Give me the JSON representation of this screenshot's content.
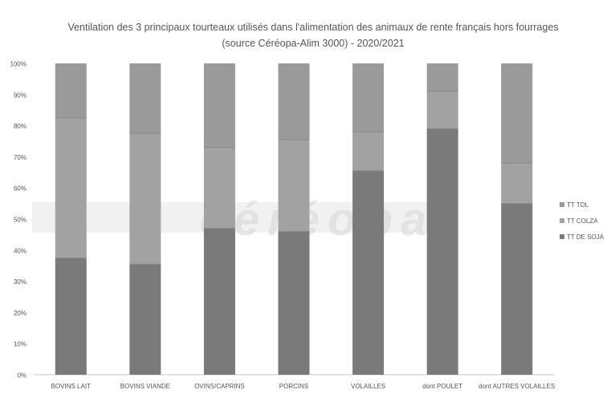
{
  "chart_data": {
    "type": "bar",
    "stacked": true,
    "normalized": true,
    "title_line1": "Ventilation des 3 principaux tourteaux utilisés dans l'alimentation des animaux de rente français hors fourrages",
    "title_line2": "(source Céréopa-Alim 3000) - 2020/2021",
    "categories": [
      "BOVINS LAIT",
      "BOVINS VIANDE",
      "OVINS/CAPRINS",
      "PORCINS",
      "VOLAILLES",
      "dont POULET",
      "dont AUTRES VOLAILLES"
    ],
    "series": [
      {
        "name": "TT DE SOJA",
        "color": "#7a7a7a",
        "values": [
          37.5,
          35.5,
          47,
          46,
          65.5,
          79,
          55
        ]
      },
      {
        "name": "TT COLZA",
        "color": "#a2a2a2",
        "values": [
          45,
          42,
          26,
          29.5,
          12.5,
          12,
          13
        ]
      },
      {
        "name": "TT TOL",
        "color": "#9a9a9a",
        "values": [
          17.5,
          22.5,
          27,
          24.5,
          22,
          9,
          32
        ]
      }
    ],
    "y_ticks": [
      "0%",
      "10%",
      "20%",
      "30%",
      "40%",
      "50%",
      "60%",
      "70%",
      "80%",
      "90%",
      "100%"
    ],
    "ylim": [
      0,
      100
    ],
    "grid": false,
    "legend_position": "right",
    "watermark": "céréopa"
  }
}
